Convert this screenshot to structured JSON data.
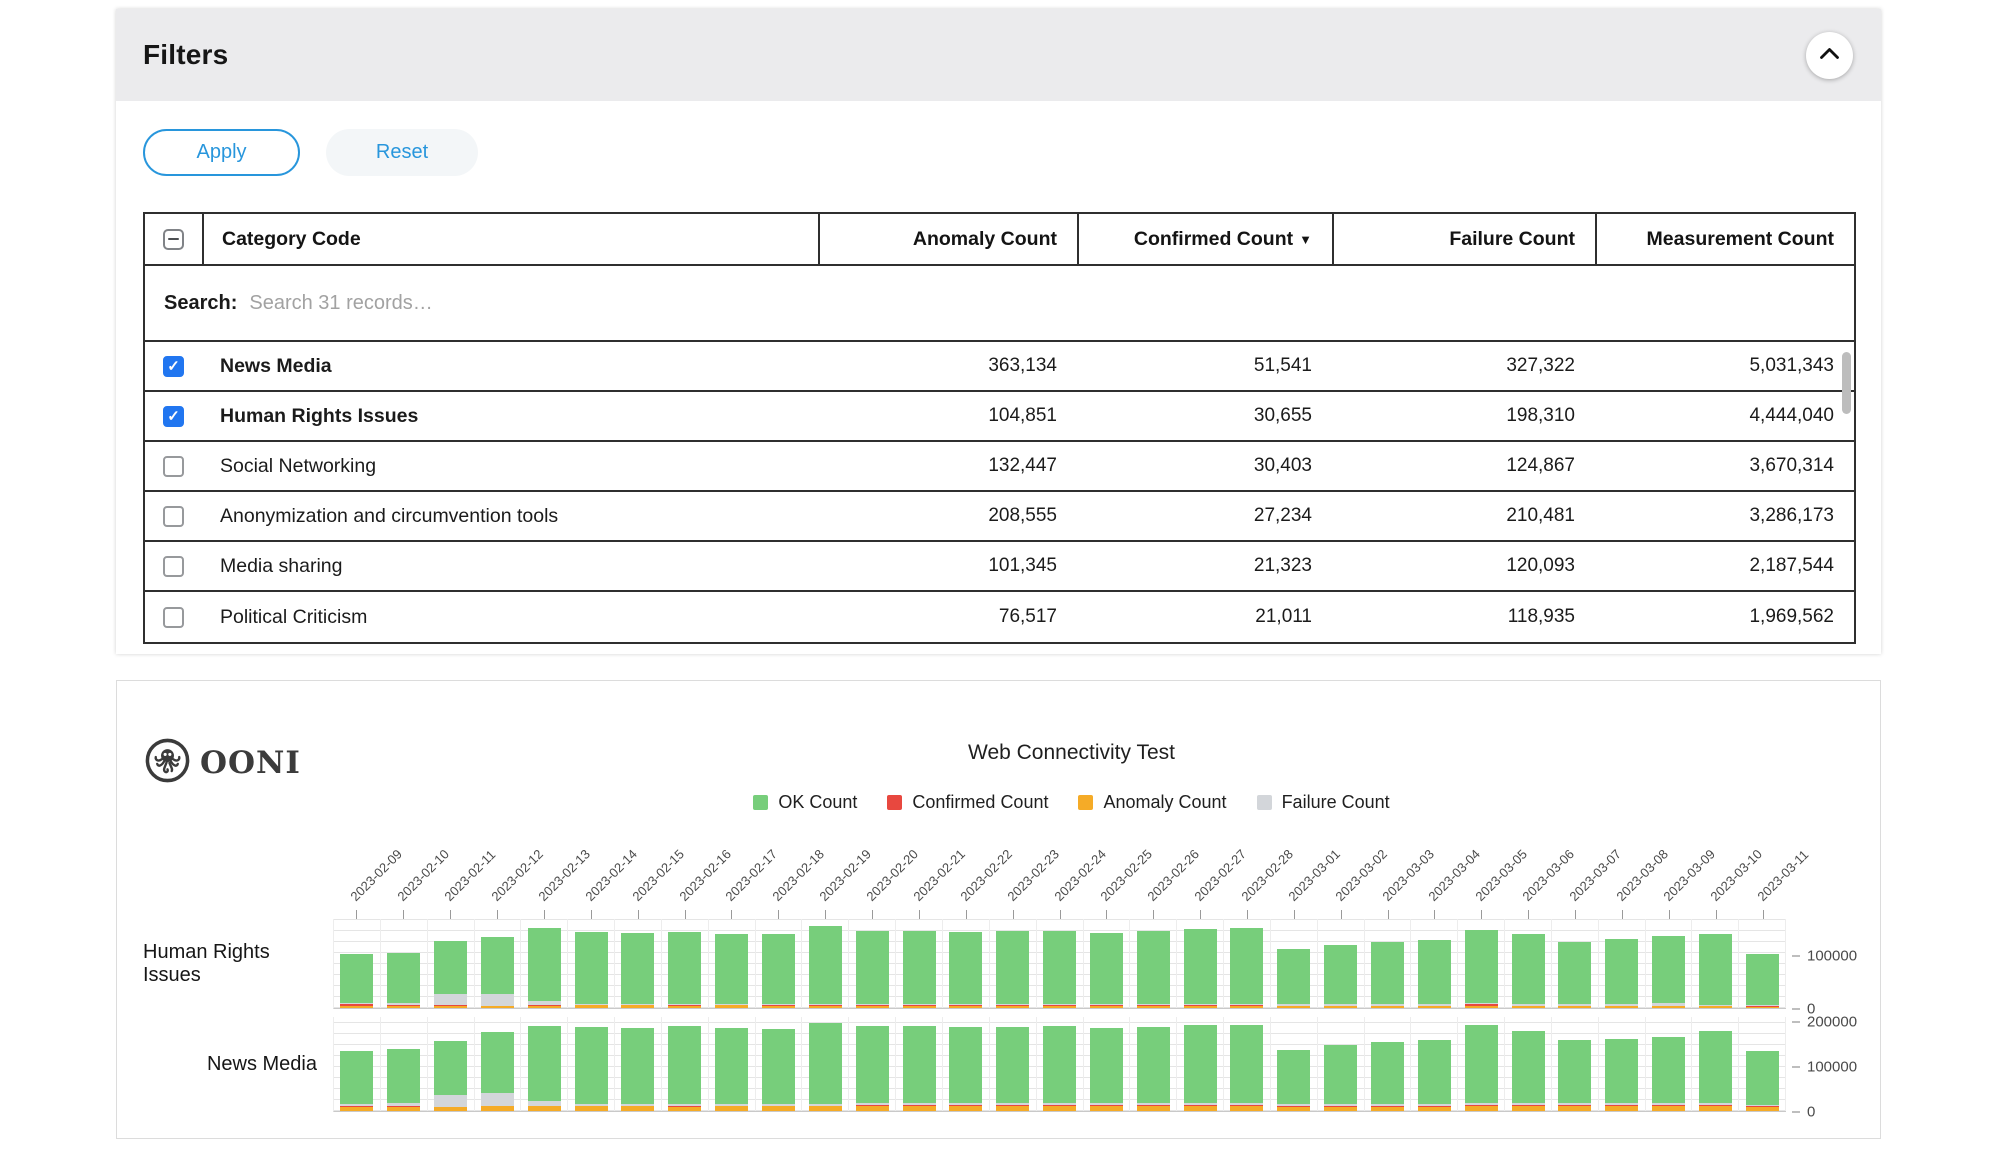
{
  "filters": {
    "title": "Filters",
    "apply_label": "Apply",
    "reset_label": "Reset",
    "search_label": "Search:",
    "search_placeholder": "Search 31 records…",
    "table": {
      "columns": [
        "Category Code",
        "Anomaly Count",
        "Confirmed Count",
        "Failure Count",
        "Measurement Count"
      ],
      "sort_column": "Confirmed Count",
      "sort_arrow": "▼",
      "rows": [
        {
          "label": "News Media",
          "checked": true,
          "anomaly_count": "363,134",
          "confirmed_count": "51,541",
          "failure_count": "327,322",
          "measurement_count": "5,031,343"
        },
        {
          "label": "Human Rights Issues",
          "checked": true,
          "anomaly_count": "104,851",
          "confirmed_count": "30,655",
          "failure_count": "198,310",
          "measurement_count": "4,444,040"
        },
        {
          "label": "Social Networking",
          "checked": false,
          "anomaly_count": "132,447",
          "confirmed_count": "30,403",
          "failure_count": "124,867",
          "measurement_count": "3,670,314"
        },
        {
          "label": "Anonymization and circumvention tools",
          "checked": false,
          "anomaly_count": "208,555",
          "confirmed_count": "27,234",
          "failure_count": "210,481",
          "measurement_count": "3,286,173"
        },
        {
          "label": "Media sharing",
          "checked": false,
          "anomaly_count": "101,345",
          "confirmed_count": "21,323",
          "failure_count": "120,093",
          "measurement_count": "2,187,544"
        },
        {
          "label": "Political Criticism",
          "checked": false,
          "anomaly_count": "76,517",
          "confirmed_count": "21,011",
          "failure_count": "118,935",
          "measurement_count": "1,969,562"
        }
      ]
    }
  },
  "chart_panel": {
    "logo_text": "OONI"
  },
  "colors": {
    "accent_blue": "#2896dc",
    "checkbox_blue": "#2176f0",
    "header_gray": "#ebebed",
    "ok_green": "#77ce7b",
    "confirmed_red": "#e8483f",
    "anomaly_orange": "#f5ab27",
    "failure_gray": "#d3d6da"
  },
  "chart_data": {
    "type": "bar",
    "stacked": true,
    "title": "Web Connectivity Test",
    "legend_position": "top",
    "grid": true,
    "legend": [
      {
        "label": "OK Count",
        "color": "#77ce7b"
      },
      {
        "label": "Confirmed Count",
        "color": "#e8483f"
      },
      {
        "label": "Anomaly Count",
        "color": "#f5ab27"
      },
      {
        "label": "Failure Count",
        "color": "#d3d6da"
      }
    ],
    "x": [
      "2023-02-09",
      "2023-02-10",
      "2023-02-11",
      "2023-02-12",
      "2023-02-13",
      "2023-02-14",
      "2023-02-15",
      "2023-02-16",
      "2023-02-17",
      "2023-02-18",
      "2023-02-19",
      "2023-02-20",
      "2023-02-21",
      "2023-02-22",
      "2023-02-23",
      "2023-02-24",
      "2023-02-25",
      "2023-02-26",
      "2023-02-27",
      "2023-02-28",
      "2023-03-01",
      "2023-03-02",
      "2023-03-03",
      "2023-03-04",
      "2023-03-05",
      "2023-03-06",
      "2023-03-07",
      "2023-03-08",
      "2023-03-09",
      "2023-03-10",
      "2023-03-11"
    ],
    "facets": [
      {
        "name": "Human Rights Issues",
        "ylim": [
          0,
          170000
        ],
        "yticks": [
          100000,
          0
        ],
        "series": [
          {
            "name": "OK Count",
            "values": [
              92000,
              94000,
              100000,
              108000,
              138000,
              136000,
              134000,
              135000,
              132000,
              133000,
              148000,
              138000,
              138000,
              137000,
              138000,
              139000,
              135000,
              138000,
              142000,
              143000,
              104000,
              112000,
              118000,
              122000,
              138000,
              132000,
              118000,
              122000,
              128000,
              133000,
              97000
            ]
          },
          {
            "name": "Confirmed Count",
            "values": [
              3000,
              2000,
              1000,
              1000,
              2000,
              1000,
              1000,
              3000,
              1000,
              2000,
              2000,
              2000,
              2000,
              2000,
              2000,
              2000,
              2000,
              2000,
              2000,
              2000,
              1000,
              1000,
              1000,
              1000,
              4000,
              1000,
              1000,
              1000,
              1000,
              1000,
              1000
            ]
          },
          {
            "name": "Anomaly Count",
            "values": [
              4000,
              4000,
              4000,
              3000,
              3000,
              5000,
              5000,
              3000,
              5000,
              3000,
              3000,
              3000,
              3000,
              3000,
              3000,
              3000,
              3000,
              3000,
              3000,
              3000,
              3000,
              3000,
              3000,
              3000,
              3000,
              3000,
              3000,
              3000,
              3000,
              3000,
              2000
            ]
          },
          {
            "name": "Failure Count",
            "values": [
              3000,
              4000,
              22000,
              23000,
              8000,
              2000,
              2000,
              2000,
              2000,
              2000,
              2000,
              2000,
              2000,
              2000,
              2000,
              2000,
              2000,
              2000,
              3000,
              3000,
              3000,
              3000,
              3000,
              3000,
              2000,
              3000,
              3000,
              4000,
              5000,
              2000,
              2000
            ]
          }
        ]
      },
      {
        "name": "News Media",
        "ylim": [
          0,
          210000
        ],
        "yticks": [
          200000,
          100000,
          0
        ],
        "series": [
          {
            "name": "OK Count",
            "values": [
              118000,
              120000,
              120000,
              135000,
              165000,
              170000,
              168000,
              172000,
              168000,
              166000,
              178000,
              170000,
              170000,
              168000,
              168000,
              170000,
              166000,
              168000,
              172000,
              172000,
              120000,
              130000,
              136000,
              140000,
              172000,
              160000,
              138000,
              142000,
              146000,
              158000,
              118000
            ]
          },
          {
            "name": "Confirmed Count",
            "values": [
              3000,
              3000,
              2000,
              2000,
              2000,
              2000,
              2000,
              3000,
              2000,
              2000,
              2000,
              3000,
              3000,
              3000,
              3000,
              3000,
              3000,
              3000,
              3000,
              3000,
              3000,
              3000,
              3000,
              3000,
              4000,
              4000,
              4000,
              3000,
              3000,
              2000,
              3000
            ]
          },
          {
            "name": "Anomaly Count",
            "values": [
              9000,
              9000,
              8000,
              10000,
              10000,
              10000,
              10000,
              9000,
              10000,
              10000,
              10000,
              10000,
              10000,
              10000,
              10000,
              10000,
              10000,
              10000,
              10000,
              10000,
              9000,
              9000,
              9000,
              9000,
              10000,
              10000,
              10000,
              10000,
              10000,
              12000,
              8000
            ]
          },
          {
            "name": "Failure Count",
            "values": [
              3000,
              5000,
              25000,
              28000,
              10000,
              4000,
              4000,
              4000,
              4000,
              4000,
              4000,
              4000,
              4000,
              4000,
              4000,
              4000,
              4000,
              4000,
              5000,
              5000,
              4000,
              4000,
              4000,
              4000,
              4000,
              4000,
              4000,
              4000,
              4000,
              4000,
              3000
            ]
          }
        ]
      }
    ]
  }
}
